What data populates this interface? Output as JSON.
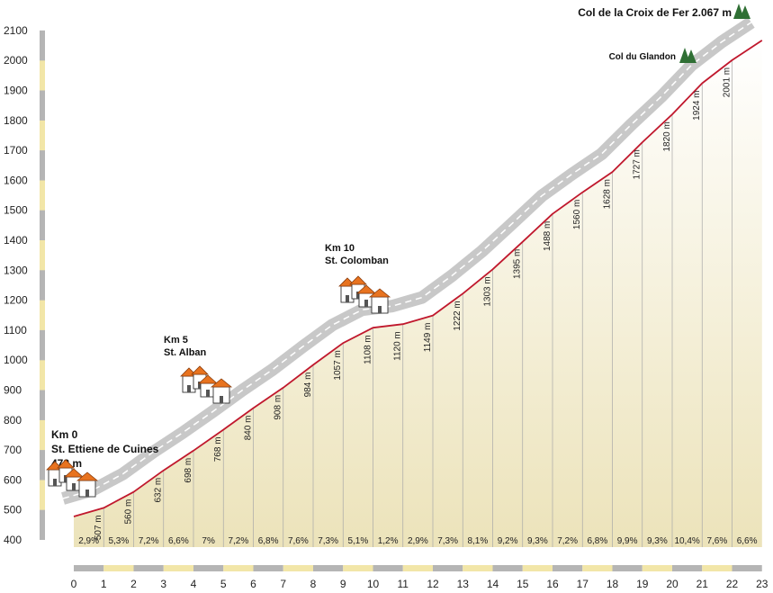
{
  "chart_data": {
    "type": "area",
    "title": "",
    "xlabel": "",
    "ylabel": "",
    "xlim": [
      0,
      23
    ],
    "ylim": [
      400,
      2100
    ],
    "y_ticks": [
      2100,
      2000,
      1900,
      1800,
      1700,
      1600,
      1500,
      1400,
      1300,
      1200,
      1100,
      1000,
      900,
      800,
      700,
      600,
      500,
      400
    ],
    "x_ticks": [
      0,
      1,
      2,
      3,
      4,
      5,
      6,
      7,
      8,
      9,
      10,
      11,
      12,
      13,
      14,
      15,
      16,
      17,
      18,
      19,
      20,
      21,
      22,
      23
    ],
    "x": [
      0,
      1,
      2,
      3,
      4,
      5,
      6,
      7,
      8,
      9,
      10,
      11,
      12,
      13,
      14,
      15,
      16,
      17,
      18,
      19,
      20,
      21,
      22,
      23
    ],
    "elevation": [
      478,
      507,
      560,
      632,
      698,
      768,
      840,
      908,
      984,
      1057,
      1108,
      1120,
      1149,
      1222,
      1303,
      1395,
      1488,
      1560,
      1628,
      1727,
      1820,
      1924,
      2001,
      2067
    ],
    "elevation_labels": [
      "507 m",
      "560 m",
      "632 m",
      "698 m",
      "768 m",
      "840 m",
      "908 m",
      "984 m",
      "1057 m",
      "1108 m",
      "1120 m",
      "1149 m",
      "1222 m",
      "1303 m",
      "1395 m",
      "1488 m",
      "1560 m",
      "1628 m",
      "1727 m",
      "1820 m",
      "1924 m",
      "2001 m"
    ],
    "gradients": [
      "2,9%",
      "5,3%",
      "7,2%",
      "6,6%",
      "7%",
      "7,2%",
      "6,8%",
      "7,6%",
      "7,3%",
      "5,1%",
      "1,2%",
      "2,9%",
      "7,3%",
      "8,1%",
      "9,2%",
      "9,3%",
      "7,2%",
      "6,8%",
      "9,9%",
      "9,3%",
      "10,4%",
      "7,6%",
      "6,6%"
    ],
    "colors": {
      "profile_line": "#c0182d",
      "road_band": "#c8c8c8",
      "road_dash": "#ffffff",
      "fill_top": "#ffffff",
      "fill_bottom": "#ece3ba",
      "axis_grey": "#b5b5b5",
      "axis_cream": "#f2e6a8",
      "house_roof": "#e8731f",
      "summit_tree": "#2f6f34"
    },
    "annotations": {
      "start": {
        "km": 0,
        "lines": [
          "Km 0",
          "St. Ettiene de Cuines",
          "478 m"
        ]
      },
      "alban": {
        "km": 4.2,
        "lines": [
          "Km 5",
          "St. Alban"
        ]
      },
      "colomban": {
        "km": 10,
        "lines": [
          "Km 10",
          "St. Colomban"
        ]
      },
      "glandon": {
        "km": 20.6,
        "label": "Col du Glandon"
      },
      "croix": {
        "km": 23,
        "label": "Col de la Croix de Fer 2.067 m"
      }
    }
  }
}
